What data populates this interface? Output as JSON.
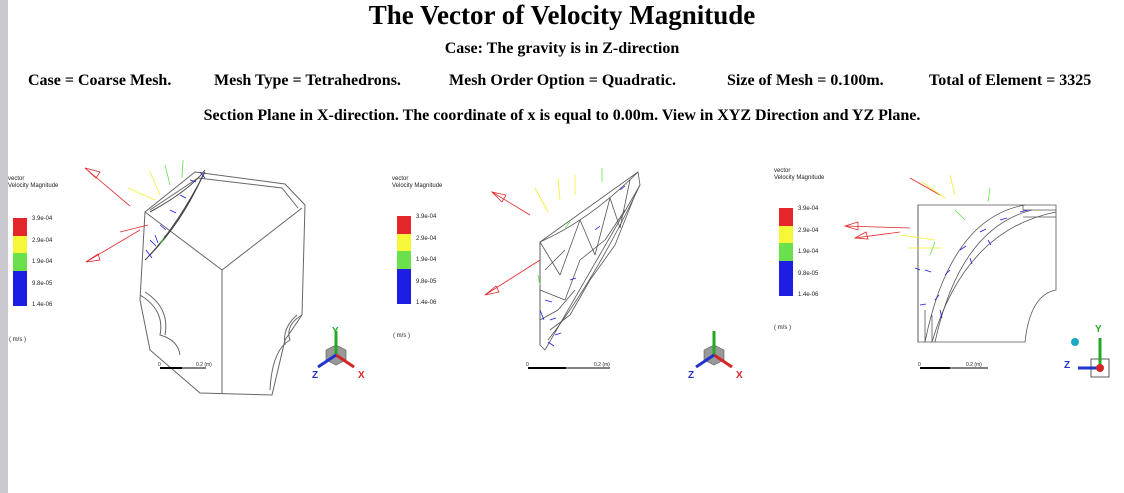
{
  "title": "The Vector of Velocity Magnitude",
  "subtitle": "Case: The gravity is in Z-direction",
  "info": [
    "Case = Coarse Mesh.",
    "Mesh Type = Tetrahedrons.",
    "Mesh Order Option = Quadratic.",
    "Size of Mesh = 0.100m.",
    "Total of Element = 3325"
  ],
  "section": "Section Plane in X-direction. The coordinate of x is equal to 0.00m. View in XYZ Direction and YZ Plane.",
  "legend": {
    "title_line1": "vector",
    "title_line2": "Velocity Magnitude",
    "labels": [
      "3.9e-04",
      "2.9e-04",
      "1.9e-04",
      "9.8e-05",
      "1.4e-06"
    ],
    "colors": [
      "#e4262a",
      "#f2f22b",
      "#f2f22b",
      "#5fe34a",
      "#1b1be6"
    ],
    "band_colors": [
      "#e4262a",
      "#f7f73a",
      "#6be04d",
      "#1d1de3",
      "#1d1de3"
    ],
    "unit": "( m/s )"
  },
  "scale": {
    "zero": "0",
    "value": "0.2 (m)"
  },
  "axes": {
    "x": "X",
    "y": "Y",
    "z": "Z"
  },
  "colors": {
    "red": "#e4262a",
    "yellow": "#f2f22b",
    "green": "#5fe34a",
    "blue": "#1b1be6",
    "mesh": "#555555"
  }
}
